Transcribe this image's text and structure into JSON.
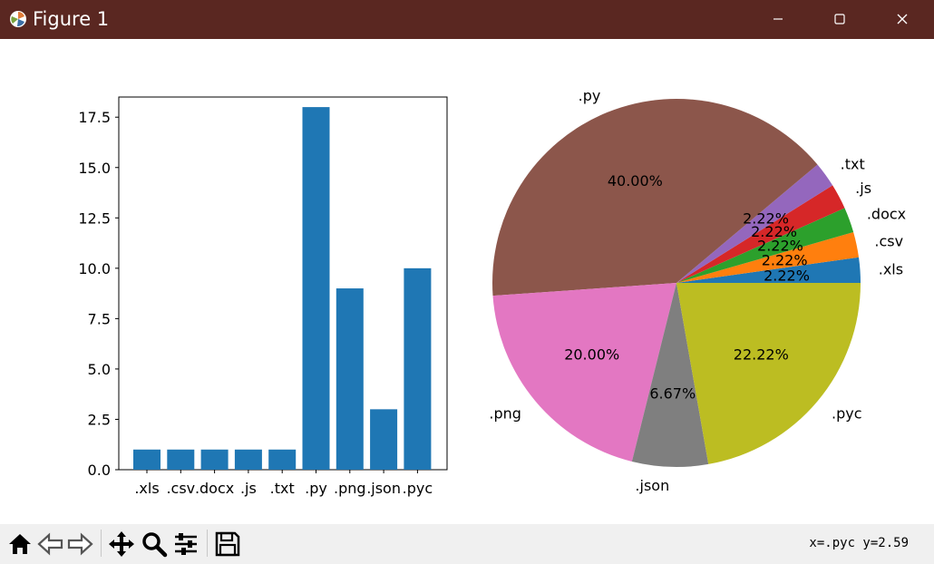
{
  "window": {
    "title": "Figure 1",
    "titlebar_color": "#5a2721",
    "controls": [
      "minimize-icon",
      "maximize-icon",
      "close-icon"
    ]
  },
  "toolbar": {
    "buttons": [
      "home-icon",
      "back-arrow-icon",
      "forward-arrow-icon",
      "pan-icon",
      "zoom-icon",
      "configure-subplots-icon",
      "save-icon"
    ],
    "coordinate_readout": "x=.pyc y=2.59"
  },
  "chart_data": [
    {
      "type": "bar",
      "categories": [
        ".xls",
        ".csv",
        ".docx",
        ".js",
        ".txt",
        ".py",
        ".png",
        ".json",
        ".pyc"
      ],
      "values": [
        1,
        1,
        1,
        1,
        1,
        18,
        9,
        3,
        10
      ],
      "ylim": [
        0,
        18.5
      ],
      "yticks": [
        "0.0",
        "2.5",
        "5.0",
        "7.5",
        "10.0",
        "12.5",
        "15.0",
        "17.5"
      ],
      "bar_color": "#1f77b4",
      "grid": false
    },
    {
      "type": "pie",
      "labels": [
        ".xls",
        ".csv",
        ".docx",
        ".js",
        ".txt",
        ".py",
        ".png",
        ".json",
        ".pyc"
      ],
      "values": [
        1,
        1,
        1,
        1,
        1,
        18,
        9,
        3,
        10
      ],
      "percent_labels": [
        "2.22%",
        "2.22%",
        "2.22%",
        "2.22%",
        "2.22%",
        "40.00%",
        "20.00%",
        "6.67%",
        "22.22%"
      ],
      "colors": [
        "#1f77b4",
        "#ff7f0e",
        "#2ca02c",
        "#d62728",
        "#9467bd",
        "#8c564b",
        "#e377c2",
        "#7f7f7f",
        "#bcbd22"
      ]
    }
  ]
}
